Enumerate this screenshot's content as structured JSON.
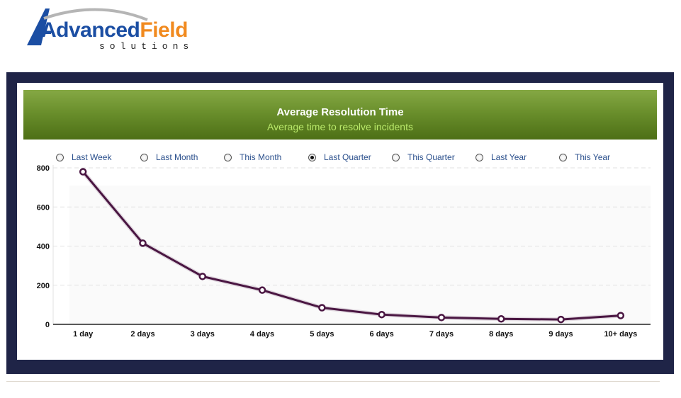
{
  "logo": {
    "brand_part1": "Advanced",
    "brand_part2": "Field",
    "tagline": "solutions",
    "colors": {
      "primary": "#1b4ea3",
      "accent": "#f18a1f"
    }
  },
  "header": {
    "title": "Average Resolution Time",
    "subtitle": "Average time to resolve incidents",
    "colors": {
      "bg_top": "#85a844",
      "bg_bottom": "#4d6f16",
      "subtitle": "#b9e86a"
    }
  },
  "range_options": [
    {
      "label": "Last Week",
      "checked": false
    },
    {
      "label": "Last Month",
      "checked": false
    },
    {
      "label": "This Month",
      "checked": false
    },
    {
      "label": "Last Quarter",
      "checked": true
    },
    {
      "label": "This Quarter",
      "checked": false
    },
    {
      "label": "Last Year",
      "checked": false
    },
    {
      "label": "This Year",
      "checked": false
    }
  ],
  "chart_data": {
    "type": "line",
    "categories": [
      "1 day",
      "2 days",
      "3 days",
      "4 days",
      "5 days",
      "6 days",
      "7 days",
      "8 days",
      "9 days",
      "10+ days"
    ],
    "series": [
      {
        "values": [
          780,
          415,
          245,
          175,
          85,
          50,
          35,
          28,
          25,
          45
        ],
        "color": "#4a1642"
      }
    ],
    "y_ticks": [
      0,
      200,
      400,
      600,
      800
    ],
    "ylim": [
      0,
      800
    ],
    "grid": true,
    "legend": "none"
  }
}
